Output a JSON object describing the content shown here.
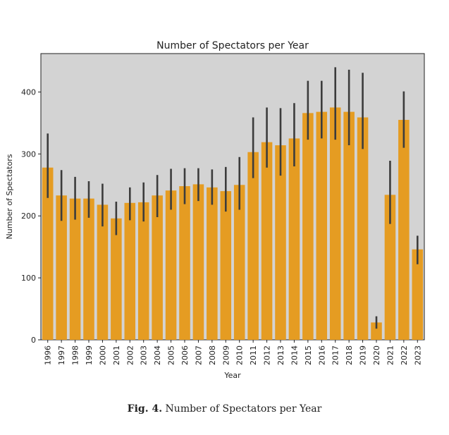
{
  "figure": {
    "caption_label": "Fig. 4.",
    "caption_text": "Number of Spectators per Year"
  },
  "chart_data": {
    "type": "bar",
    "title": "Number of Spectators per Year",
    "xlabel": "Year",
    "ylabel": "Number of Spectators",
    "ylim": [
      0,
      462
    ],
    "yticks": [
      0,
      100,
      200,
      300,
      400
    ],
    "grid": false,
    "legend": "none",
    "colors": {
      "bar": "#E59C22",
      "background": "#D3D3D3",
      "errorbar": "#3C3C3C"
    },
    "categories": [
      "1996",
      "1997",
      "1998",
      "1999",
      "2000",
      "2001",
      "2002",
      "2003",
      "2004",
      "2005",
      "2006",
      "2007",
      "2008",
      "2009",
      "2010",
      "2011",
      "2012",
      "2013",
      "2014",
      "2015",
      "2016",
      "2017",
      "2018",
      "2019",
      "2020",
      "2021",
      "2022",
      "2023"
    ],
    "values": [
      278,
      233,
      228,
      228,
      218,
      196,
      221,
      222,
      233,
      241,
      248,
      251,
      246,
      240,
      250,
      303,
      319,
      314,
      325,
      366,
      368,
      375,
      368,
      359,
      28,
      234,
      355,
      146
    ],
    "error_low": [
      229,
      192,
      194,
      197,
      183,
      169,
      193,
      191,
      198,
      210,
      219,
      224,
      218,
      207,
      210,
      261,
      278,
      265,
      280,
      323,
      325,
      323,
      314,
      308,
      18,
      187,
      310,
      122
    ],
    "error_high": [
      333,
      274,
      263,
      256,
      252,
      223,
      246,
      254,
      266,
      276,
      277,
      277,
      275,
      279,
      295,
      359,
      375,
      374,
      382,
      418,
      418,
      440,
      436,
      431,
      38,
      289,
      401,
      168
    ]
  }
}
